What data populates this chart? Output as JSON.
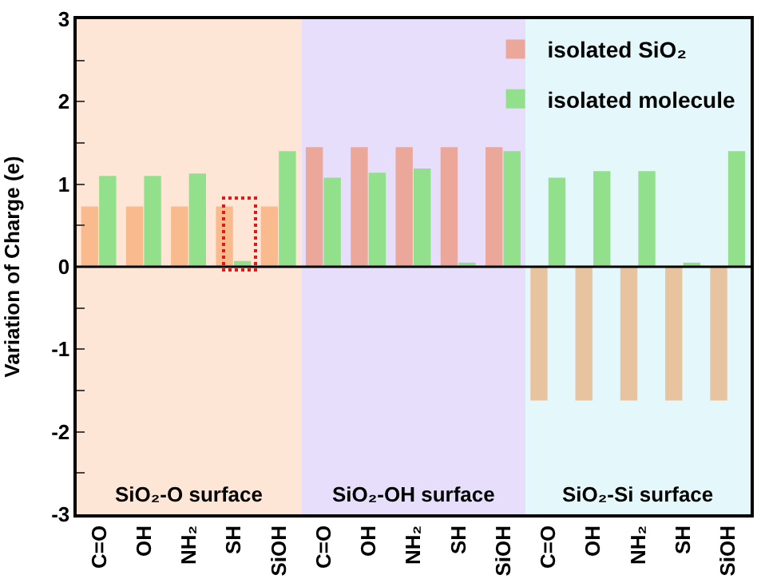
{
  "chart_data": {
    "type": "bar",
    "ylabel": "Variation of Charge (e)",
    "categories": [
      "C=O",
      "OH",
      "NH₂",
      "SH",
      "SiOH",
      "C=O",
      "OH",
      "NH₂",
      "SH",
      "SiOH",
      "C=O",
      "OH",
      "NH₂",
      "SH",
      "SiOH"
    ],
    "series": [
      {
        "name": "isolated SiO₂",
        "color": "#eba89a",
        "colors": [
          "#f9bb8e",
          "#f9bb8e",
          "#f9bb8e",
          "#f9bb8e",
          "#f9bb8e",
          "#eba89a",
          "#eba89a",
          "#eba89a",
          "#eba89a",
          "#eba89a",
          "#e8c3a0",
          "#e8c3a0",
          "#e8c3a0",
          "#e8c3a0",
          "#e8c3a0"
        ],
        "values": [
          0.73,
          0.73,
          0.73,
          0.73,
          0.73,
          1.45,
          1.45,
          1.45,
          1.45,
          1.45,
          -1.62,
          -1.62,
          -1.62,
          -1.62,
          -1.62
        ]
      },
      {
        "name": "isolated molecule",
        "color": "#92e08c",
        "values": [
          1.1,
          1.1,
          1.13,
          0.07,
          1.4,
          1.08,
          1.14,
          1.19,
          0.05,
          1.4,
          1.08,
          1.16,
          1.16,
          0.05,
          1.4
        ]
      }
    ],
    "ylim": [
      -3,
      3
    ],
    "yticks": [
      -3,
      {
        "value": -2.5,
        "label": null
      },
      -2,
      {
        "value": -1.5,
        "label": null
      },
      -1,
      {
        "value": -0.5,
        "label": null
      },
      0,
      {
        "value": 0.5,
        "label": null
      },
      1,
      {
        "value": 1.5,
        "label": null
      },
      2,
      {
        "value": 2.5,
        "label": null
      },
      3
    ],
    "annotations": [
      "SiO₂-O surface",
      "SiO₂-OH surface",
      "SiO₂-Si surface"
    ],
    "ref_lines": [
      {
        "axis": "y",
        "value": 0,
        "color": "#000000"
      }
    ],
    "legend": "top right",
    "grid": false
  }
}
